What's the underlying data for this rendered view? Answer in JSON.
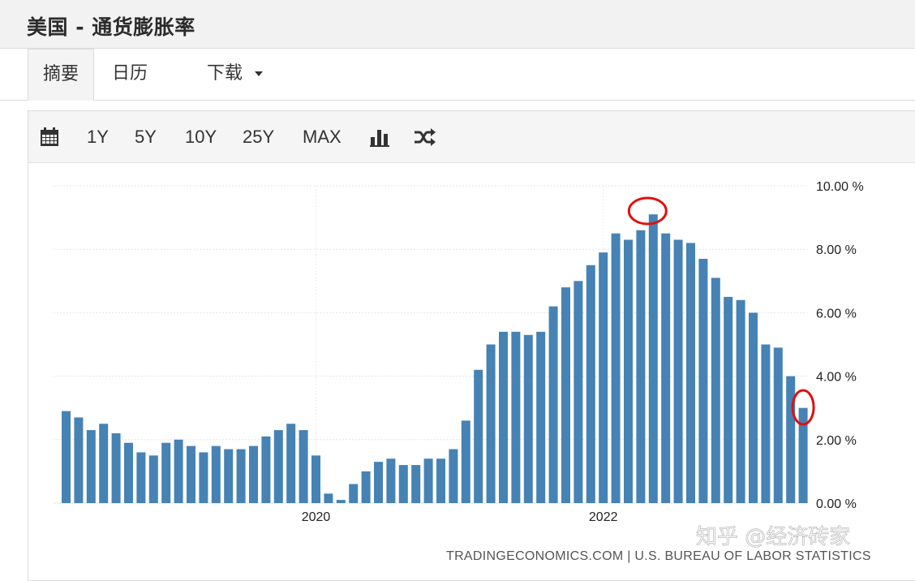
{
  "header": {
    "title": "美国 - 通货膨胀率"
  },
  "tabs": [
    {
      "label": "摘要",
      "active": true
    },
    {
      "label": "日历",
      "active": false
    },
    {
      "label": "下载",
      "active": false,
      "dropdown": true
    }
  ],
  "toolbar": {
    "calendar_icon": "calendar-icon",
    "ranges": [
      "1Y",
      "5Y",
      "10Y",
      "25Y",
      "MAX"
    ],
    "chart_type_icon": "bar-chart-icon",
    "compare_icon": "shuffle-icon"
  },
  "chart_data": {
    "type": "bar",
    "start": "2018-09",
    "values": [
      2.3,
      2.5,
      2.2,
      1.9,
      1.6,
      1.5,
      1.9,
      2.0,
      1.8,
      1.6,
      1.8,
      1.7,
      1.7,
      1.8,
      2.1,
      2.3,
      2.5,
      2.3,
      1.5,
      0.3,
      0.1,
      0.6,
      1.0,
      1.3,
      1.4,
      1.2,
      1.2,
      1.4,
      1.4,
      1.7,
      2.6,
      4.2,
      5.0,
      5.4,
      5.4,
      5.3,
      5.4,
      6.2,
      6.8,
      7.0,
      7.5,
      7.9,
      8.5,
      8.3,
      8.6,
      9.1,
      8.5,
      8.3,
      8.2,
      7.7,
      7.1,
      6.5,
      6.4,
      6.0,
      5.0,
      4.9,
      4.0,
      3.0
    ],
    "prefix_values": [
      2.9,
      2.7
    ],
    "x_ticks": [
      {
        "label": "2020",
        "index": 18
      },
      {
        "label": "2022",
        "index": 41
      }
    ],
    "y_ticks": [
      "0.00 %",
      "2.00 %",
      "4.00 %",
      "6.00 %",
      "8.00 %",
      "10.00 %"
    ],
    "ylim": [
      0,
      10
    ],
    "y_axis_side": "right",
    "bar_color": "#4682b4",
    "grid": true,
    "highlighted_indices": [
      45,
      57
    ],
    "highlight_color": "#dd1111"
  },
  "source": "TRADINGECONOMICS.COM | U.S. BUREAU OF LABOR STATISTICS",
  "watermark": "知乎 @经济砖家"
}
